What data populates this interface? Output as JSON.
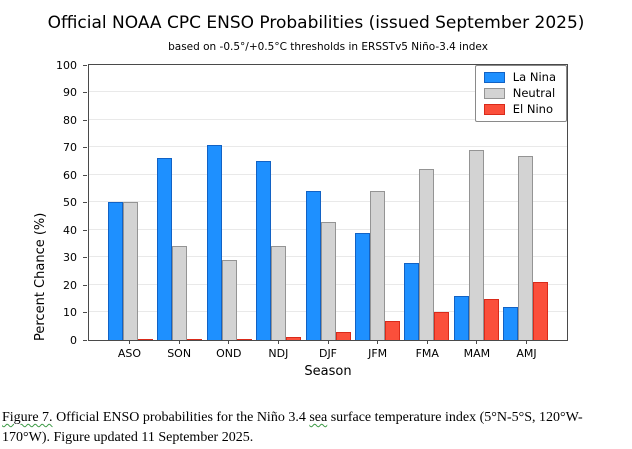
{
  "chart": {
    "title": "Official NOAA CPC ENSO Probabilities (issued September 2025)",
    "subtitle": "based on -0.5°/+0.5°C thresholds in ERSSTv5 Niño-3.4 index",
    "xlabel": "Season",
    "ylabel": "Percent Chance (%)"
  },
  "chart_data": {
    "type": "bar",
    "categories": [
      "ASO",
      "SON",
      "OND",
      "NDJ",
      "DJF",
      "JFM",
      "FMA",
      "MAM",
      "AMJ"
    ],
    "series": [
      {
        "name": "La Nina",
        "color": "#1e90ff",
        "edge_color": "#1262c4",
        "values": [
          50,
          66,
          71,
          65,
          54,
          39,
          28,
          16,
          12
        ]
      },
      {
        "name": "Neutral",
        "color": "#d3d3d3",
        "edge_color": "#949494",
        "values": [
          50,
          34,
          29,
          34,
          43,
          54,
          62,
          69,
          67
        ]
      },
      {
        "name": "El Nino",
        "color": "#fb4f3b",
        "edge_color": "#d92a1a",
        "values": [
          0,
          0,
          0,
          1,
          3,
          7,
          10,
          15,
          21
        ]
      }
    ],
    "title": "Official NOAA CPC ENSO Probabilities (issued September 2025)",
    "subtitle": "based on -0.5°/+0.5°C thresholds in ERSSTv5 Niño-3.4 index",
    "xlabel": "Season",
    "ylabel": "Percent Chance (%)",
    "ylim": [
      0,
      100
    ],
    "yticks": [
      0,
      10,
      20,
      30,
      40,
      50,
      60,
      70,
      80,
      90,
      100
    ],
    "grid": true,
    "legend_position": "top-right"
  },
  "caption": {
    "figure_label": "Figure 7.",
    "text_before_sea": " Official ENSO probabilities for the Niño 3.4 ",
    "sea_word": "sea",
    "text_after_sea": " surface temperature index (5°N-5°S, 120°W-170°W). Figure updated 11 September 2025."
  },
  "colors": {
    "spine": "#4a4a4a",
    "gridline": "#e9e9e9",
    "squiggle": "#3a9943"
  }
}
